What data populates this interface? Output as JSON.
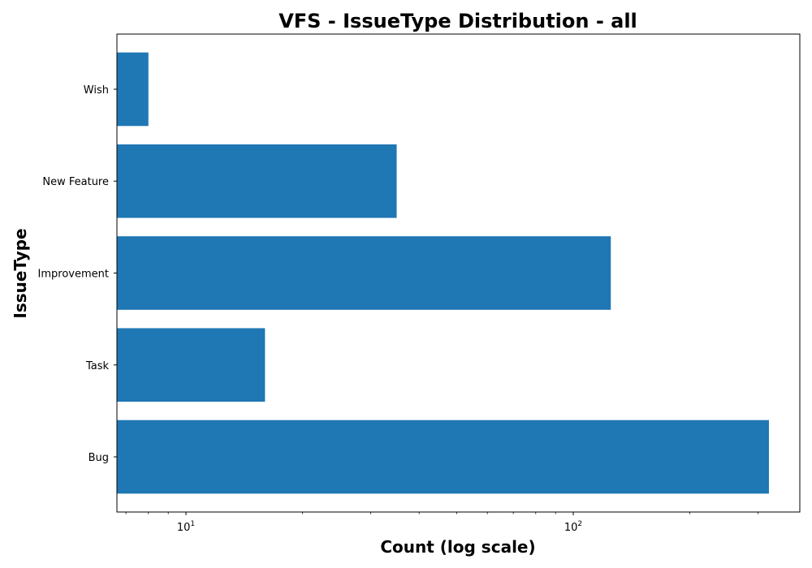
{
  "chart_data": {
    "type": "bar",
    "orientation": "horizontal",
    "title": "VFS - IssueType Distribution - all",
    "xlabel": "Count (log scale)",
    "ylabel": "IssueType",
    "x_scale": "log",
    "xlim": [
      7,
      420
    ],
    "categories": [
      "Bug",
      "Task",
      "Improvement",
      "New Feature",
      "Wish"
    ],
    "values": [
      320,
      16,
      125,
      35,
      8
    ],
    "major_ticks": [
      {
        "value": 10,
        "base": "10",
        "exp": "1"
      },
      {
        "value": 100,
        "base": "10",
        "exp": "2"
      }
    ],
    "minor_ticks": [
      7,
      8,
      9,
      20,
      30,
      40,
      50,
      60,
      70,
      80,
      90,
      200,
      300,
      400
    ],
    "bar_color": "#1f77b4",
    "grid": false,
    "legend": "none"
  }
}
